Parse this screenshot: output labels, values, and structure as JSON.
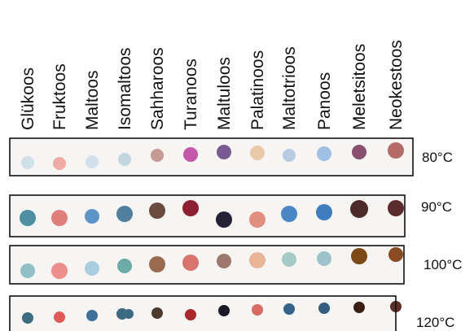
{
  "columns": [
    "Glükoos",
    "Fruktoos",
    "Maltoos",
    "Isomaltoos",
    "Sahharoos",
    "Turanoos",
    "Maltuloos",
    "Palatinoos",
    "Maltotrioos",
    "Panoos",
    "Meletsitoos",
    "Neokestoos"
  ],
  "strips": [
    {
      "temperature": "80°C",
      "spot_colors": [
        "#cfe0e8",
        "#eeaaa5",
        "#d4dfee",
        "#c2d6e0",
        "#c49a92",
        "#c357a8",
        "#7a5a93",
        "#e8c9a9",
        "#b8cbe2",
        "#9fc0e3",
        "#8a4e6e",
        "#b46a66"
      ]
    },
    {
      "temperature": "90°C",
      "spot_colors": [
        "#4f8fa2",
        "#e07e7c",
        "#5c94c8",
        "#4f7f9c",
        "#6b4a40",
        "#8a2030",
        "#252238",
        "#e08e80",
        "#4a85c4",
        "#3f7dc0",
        "#4a2a2a",
        "#5a2c2c"
      ]
    },
    {
      "temperature": "100°C",
      "spot_colors": [
        "#8fc0c8",
        "#ec8f8c",
        "#a9cedf",
        "#6caba6",
        "#9a6a4e",
        "#d8736e",
        "#9e776c",
        "#e9b597",
        "#a8cac6",
        "#9ec2c9",
        "#7c4818",
        "#8a4a22"
      ]
    },
    {
      "temperature": "120°C",
      "spot_colors": [
        "#3d6c80",
        "#e05a5a",
        "#3f6f9a",
        "#3c6a82",
        "#4a3a30",
        "#a8282c",
        "#1c1a26",
        "#d96a62",
        "#35628a",
        "#345c7c",
        "#3a1e12",
        "#5c3024"
      ]
    }
  ]
}
